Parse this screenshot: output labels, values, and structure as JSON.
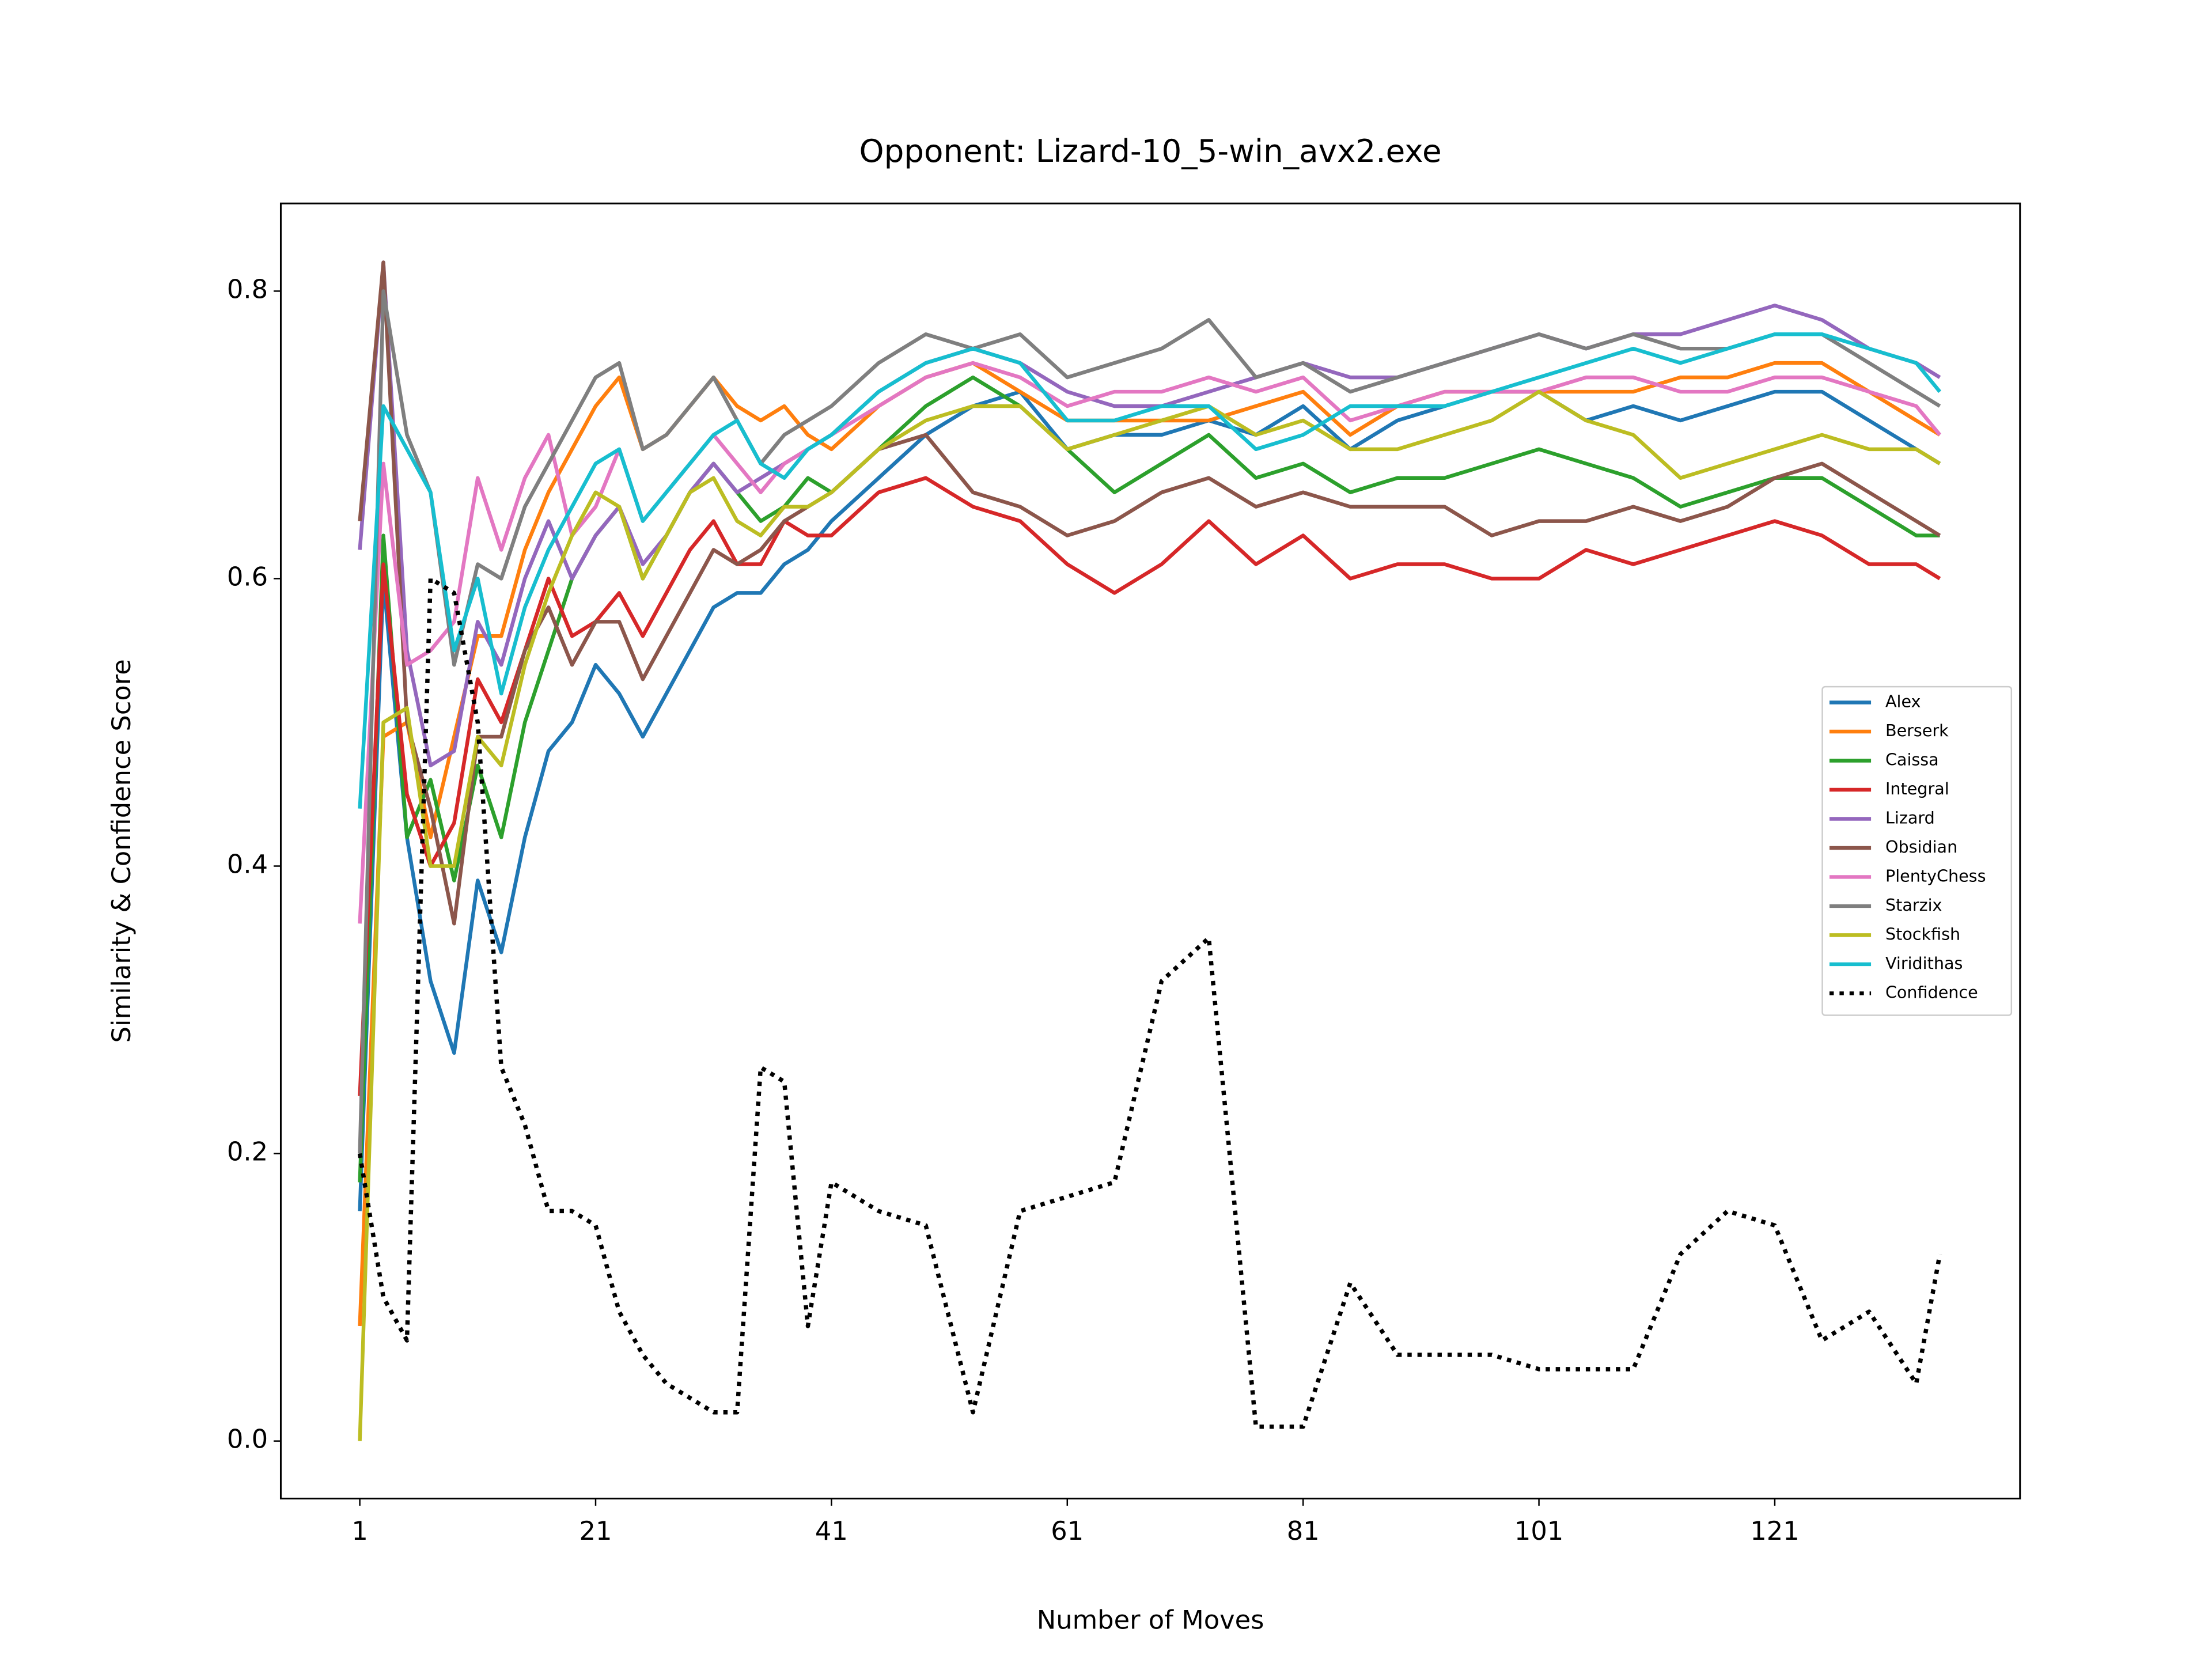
{
  "chart_data": {
    "type": "line",
    "title": "Opponent: Lizard-10_5-win_avx2.exe",
    "x_label": "Number of Moves",
    "y_label": "Similarity & Confidence Score",
    "x": [
      1,
      3,
      5,
      7,
      9,
      11,
      13,
      15,
      17,
      19,
      21,
      23,
      25,
      27,
      29,
      31,
      33,
      35,
      37,
      39,
      41,
      45,
      49,
      53,
      57,
      61,
      65,
      69,
      73,
      77,
      81,
      85,
      89,
      93,
      97,
      101,
      105,
      109,
      113,
      117,
      121,
      125,
      129,
      133,
      135
    ],
    "series": [
      {
        "name": "Alex",
        "color": "#1f77b4",
        "values": [
          0.16,
          0.6,
          0.42,
          0.32,
          0.27,
          0.39,
          0.34,
          0.42,
          0.48,
          0.5,
          0.54,
          0.52,
          0.49,
          0.52,
          0.55,
          0.58,
          0.59,
          0.59,
          0.61,
          0.62,
          0.64,
          0.67,
          0.7,
          0.72,
          0.73,
          0.69,
          0.7,
          0.7,
          0.71,
          0.7,
          0.72,
          0.69,
          0.71,
          0.72,
          0.73,
          0.73,
          0.71,
          0.72,
          0.71,
          0.72,
          0.73,
          0.73,
          0.71,
          0.69,
          0.68
        ]
      },
      {
        "name": "Berserk",
        "color": "#ff7f0e",
        "values": [
          0.08,
          0.49,
          0.5,
          0.42,
          0.49,
          0.56,
          0.56,
          0.62,
          0.66,
          0.69,
          0.72,
          0.74,
          0.69,
          0.7,
          0.72,
          0.74,
          0.72,
          0.71,
          0.72,
          0.7,
          0.69,
          0.72,
          0.74,
          0.75,
          0.73,
          0.71,
          0.71,
          0.71,
          0.71,
          0.72,
          0.73,
          0.7,
          0.72,
          0.73,
          0.73,
          0.73,
          0.73,
          0.73,
          0.74,
          0.74,
          0.75,
          0.75,
          0.73,
          0.71,
          0.7
        ]
      },
      {
        "name": "Caissa",
        "color": "#2ca02c",
        "values": [
          0.18,
          0.63,
          0.42,
          0.46,
          0.39,
          0.47,
          0.42,
          0.5,
          0.55,
          0.6,
          0.63,
          0.65,
          0.6,
          0.63,
          0.66,
          0.68,
          0.66,
          0.64,
          0.65,
          0.67,
          0.66,
          0.69,
          0.72,
          0.74,
          0.72,
          0.69,
          0.66,
          0.68,
          0.7,
          0.67,
          0.68,
          0.66,
          0.67,
          0.67,
          0.68,
          0.69,
          0.68,
          0.67,
          0.65,
          0.66,
          0.67,
          0.67,
          0.65,
          0.63,
          0.63
        ]
      },
      {
        "name": "Integral",
        "color": "#d62728",
        "values": [
          0.24,
          0.61,
          0.45,
          0.4,
          0.43,
          0.53,
          0.5,
          0.55,
          0.6,
          0.56,
          0.57,
          0.59,
          0.56,
          0.59,
          0.62,
          0.64,
          0.61,
          0.61,
          0.64,
          0.63,
          0.63,
          0.66,
          0.67,
          0.65,
          0.64,
          0.61,
          0.59,
          0.61,
          0.64,
          0.61,
          0.63,
          0.6,
          0.61,
          0.61,
          0.6,
          0.6,
          0.62,
          0.61,
          0.62,
          0.63,
          0.64,
          0.63,
          0.61,
          0.61,
          0.6
        ]
      },
      {
        "name": "Lizard",
        "color": "#9467bd",
        "values": [
          0.62,
          0.82,
          0.55,
          0.47,
          0.48,
          0.57,
          0.54,
          0.6,
          0.64,
          0.6,
          0.63,
          0.65,
          0.61,
          0.63,
          0.66,
          0.68,
          0.66,
          0.67,
          0.68,
          0.69,
          0.7,
          0.73,
          0.75,
          0.76,
          0.75,
          0.73,
          0.72,
          0.72,
          0.73,
          0.74,
          0.75,
          0.74,
          0.74,
          0.75,
          0.76,
          0.77,
          0.76,
          0.77,
          0.77,
          0.78,
          0.79,
          0.78,
          0.76,
          0.75,
          0.74
        ]
      },
      {
        "name": "Obsidian",
        "color": "#8c564b",
        "values": [
          0.64,
          0.82,
          0.5,
          0.44,
          0.36,
          0.49,
          0.49,
          0.55,
          0.58,
          0.54,
          0.57,
          0.57,
          0.53,
          0.56,
          0.59,
          0.62,
          0.61,
          0.62,
          0.64,
          0.65,
          0.66,
          0.69,
          0.7,
          0.66,
          0.65,
          0.63,
          0.64,
          0.66,
          0.67,
          0.65,
          0.66,
          0.65,
          0.65,
          0.65,
          0.63,
          0.64,
          0.64,
          0.65,
          0.64,
          0.65,
          0.67,
          0.68,
          0.66,
          0.64,
          0.63
        ]
      },
      {
        "name": "PlentyChess",
        "color": "#e377c2",
        "values": [
          0.36,
          0.68,
          0.54,
          0.55,
          0.57,
          0.67,
          0.62,
          0.67,
          0.7,
          0.63,
          0.65,
          0.69,
          0.64,
          0.66,
          0.68,
          0.7,
          0.68,
          0.66,
          0.68,
          0.69,
          0.7,
          0.72,
          0.74,
          0.75,
          0.74,
          0.72,
          0.73,
          0.73,
          0.74,
          0.73,
          0.74,
          0.71,
          0.72,
          0.73,
          0.73,
          0.73,
          0.74,
          0.74,
          0.73,
          0.73,
          0.74,
          0.74,
          0.73,
          0.72,
          0.7
        ]
      },
      {
        "name": "Starzix",
        "color": "#7f7f7f",
        "values": [
          0.2,
          0.8,
          0.7,
          0.66,
          0.54,
          0.61,
          0.6,
          0.65,
          0.68,
          0.71,
          0.74,
          0.75,
          0.69,
          0.7,
          0.72,
          0.74,
          0.71,
          0.68,
          0.7,
          0.71,
          0.72,
          0.75,
          0.77,
          0.76,
          0.77,
          0.74,
          0.75,
          0.76,
          0.78,
          0.74,
          0.75,
          0.73,
          0.74,
          0.75,
          0.76,
          0.77,
          0.76,
          0.77,
          0.76,
          0.76,
          0.77,
          0.77,
          0.75,
          0.73,
          0.72
        ]
      },
      {
        "name": "Stockfish",
        "color": "#bcbd22",
        "values": [
          0.0,
          0.5,
          0.51,
          0.4,
          0.4,
          0.49,
          0.47,
          0.54,
          0.59,
          0.63,
          0.66,
          0.65,
          0.6,
          0.63,
          0.66,
          0.67,
          0.64,
          0.63,
          0.65,
          0.65,
          0.66,
          0.69,
          0.71,
          0.72,
          0.72,
          0.69,
          0.7,
          0.71,
          0.72,
          0.7,
          0.71,
          0.69,
          0.69,
          0.7,
          0.71,
          0.73,
          0.71,
          0.7,
          0.67,
          0.68,
          0.69,
          0.7,
          0.69,
          0.69,
          0.68
        ]
      },
      {
        "name": "Viridithas",
        "color": "#17becf",
        "values": [
          0.44,
          0.72,
          0.69,
          0.66,
          0.55,
          0.6,
          0.52,
          0.58,
          0.62,
          0.65,
          0.68,
          0.69,
          0.64,
          0.66,
          0.68,
          0.7,
          0.71,
          0.68,
          0.67,
          0.69,
          0.7,
          0.73,
          0.75,
          0.76,
          0.75,
          0.71,
          0.71,
          0.72,
          0.72,
          0.69,
          0.7,
          0.72,
          0.72,
          0.72,
          0.73,
          0.74,
          0.75,
          0.76,
          0.75,
          0.76,
          0.77,
          0.77,
          0.76,
          0.75,
          0.73
        ]
      },
      {
        "name": "Confidence",
        "color": "#000000",
        "linestyle": "dotted",
        "values": [
          0.2,
          0.1,
          0.07,
          0.6,
          0.59,
          0.5,
          0.26,
          0.22,
          0.16,
          0.16,
          0.15,
          0.09,
          0.06,
          0.04,
          0.03,
          0.02,
          0.02,
          0.26,
          0.25,
          0.08,
          0.18,
          0.16,
          0.15,
          0.02,
          0.16,
          0.17,
          0.18,
          0.32,
          0.35,
          0.01,
          0.01,
          0.11,
          0.06,
          0.06,
          0.06,
          0.05,
          0.05,
          0.05,
          0.13,
          0.16,
          0.15,
          0.07,
          0.09,
          0.04,
          0.13
        ]
      }
    ],
    "xlim": [
      -5.7,
      141.8
    ],
    "ylim": [
      -0.04,
      0.861
    ],
    "xticks": [
      1,
      21,
      41,
      61,
      81,
      101,
      121
    ],
    "yticks": [
      {
        "value": 0,
        "label": "0.0"
      },
      0.2,
      0.4,
      0.6,
      0.8
    ],
    "legend": "center right"
  }
}
